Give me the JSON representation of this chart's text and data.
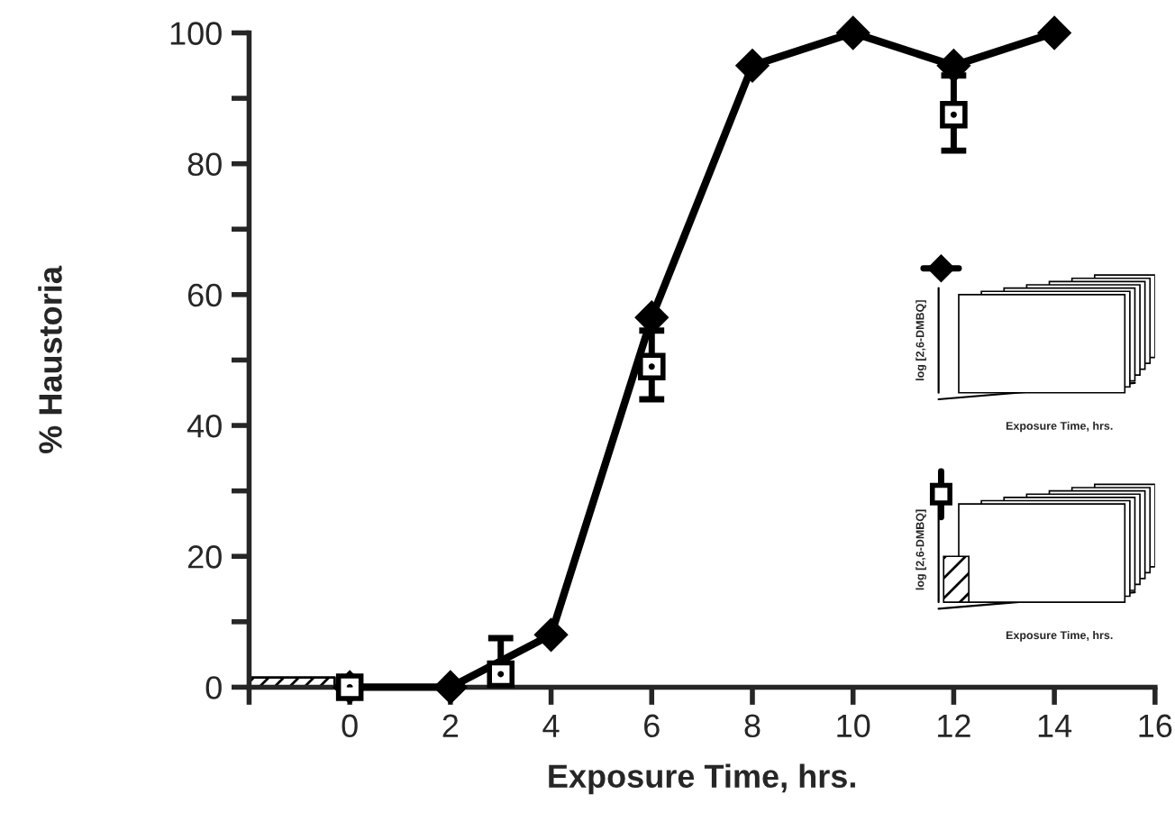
{
  "chart_data": {
    "type": "line",
    "xlabel": "Exposure Time, hrs.",
    "ylabel": "% Haustoria",
    "xlim": [
      -2,
      16
    ],
    "xticks": [
      {
        "value": -2,
        "label": null
      },
      0,
      2,
      4,
      6,
      8,
      10,
      12,
      14,
      16
    ],
    "ylim": [
      0,
      100
    ],
    "yticks": [
      0,
      {
        "value": 10,
        "label": null
      },
      20,
      {
        "value": 30,
        "label": null
      },
      40,
      {
        "value": 50,
        "label": null
      },
      60,
      {
        "value": 70,
        "label": null
      },
      80,
      {
        "value": 90,
        "label": null
      },
      100
    ],
    "grid": false,
    "legend": false,
    "series": [
      {
        "type": "area",
        "color": "#000000",
        "x": [
          -2,
          -0.3
        ],
        "values": [
          1.5,
          1.5
        ]
      },
      {
        "color": "#000000",
        "marker": "diamond",
        "line_style": "solid",
        "x": [
          0,
          2,
          4,
          6,
          8,
          10,
          12,
          14
        ],
        "values": [
          0,
          0,
          8,
          56.5,
          95,
          100,
          95,
          100
        ]
      },
      {
        "type": "scatter",
        "color": "#000000",
        "marker": "square",
        "x": [
          0,
          3,
          6,
          12
        ],
        "values": [
          0,
          2,
          49,
          87.5
        ],
        "errors": [
          null,
          [
            0,
            7.5
          ],
          [
            44,
            54.5
          ],
          [
            82,
            93.5
          ]
        ]
      }
    ],
    "annotations": [
      "log [2,6-DMBQ]",
      "Exposure Time, hrs.",
      "log [2,6-DMBQ]",
      "Exposure Time, hrs."
    ]
  }
}
